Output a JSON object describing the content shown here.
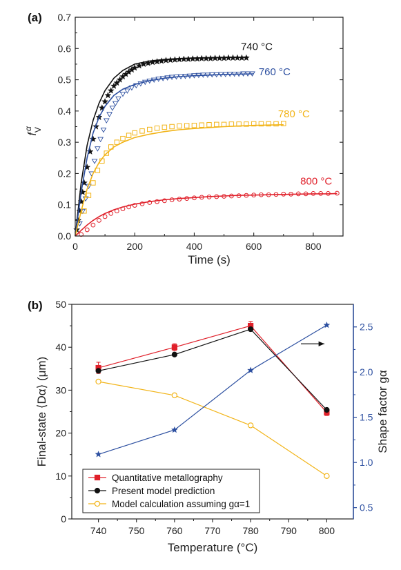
{
  "chart_data": [
    {
      "panel": "(a)",
      "type": "line",
      "xlabel": "Time (s)",
      "ylabel": "fVα",
      "xlim": [
        0,
        900
      ],
      "ylim": [
        0.0,
        0.7
      ],
      "xticks": [
        0,
        200,
        400,
        600,
        800
      ],
      "yticks": [
        0.0,
        0.1,
        0.2,
        0.3,
        0.4,
        0.5,
        0.6,
        0.7
      ],
      "xtick_labels": [
        "0",
        "200",
        "400",
        "600",
        "800"
      ],
      "ytick_labels": [
        "0.0",
        "0.1",
        "0.2",
        "0.3",
        "0.4",
        "0.5",
        "0.6",
        "0.7"
      ],
      "series": [
        {
          "name": "740 °C",
          "color": "#111111",
          "marker": "star",
          "model": {
            "x": [
              0,
              20,
              40,
              60,
              80,
              100,
              130,
              160,
              200,
              250,
              300,
              350,
              400,
              450,
              500,
              550,
              580
            ],
            "y": [
              0,
              0.17,
              0.29,
              0.37,
              0.425,
              0.465,
              0.505,
              0.53,
              0.55,
              0.56,
              0.565,
              0.568,
              0.57,
              0.571,
              0.572,
              0.572,
              0.573
            ]
          },
          "measured": {
            "x": [
              5,
              10,
              15,
              20,
              25,
              30,
              40,
              50,
              60,
              70,
              80,
              90,
              100,
              110,
              120,
              130,
              140,
              150,
              160,
              170,
              180,
              190,
              200,
              215,
              230,
              245,
              260,
              275,
              290,
              305,
              320,
              335,
              350,
              365,
              380,
              395,
              410,
              425,
              440,
              455,
              470,
              485,
              500,
              515,
              530,
              545,
              560,
              575
            ],
            "y": [
              0.02,
              0.05,
              0.08,
              0.11,
              0.14,
              0.17,
              0.22,
              0.27,
              0.31,
              0.35,
              0.38,
              0.41,
              0.43,
              0.45,
              0.465,
              0.48,
              0.49,
              0.5,
              0.51,
              0.518,
              0.525,
              0.532,
              0.538,
              0.545,
              0.55,
              0.553,
              0.556,
              0.558,
              0.56,
              0.562,
              0.563,
              0.564,
              0.565,
              0.566,
              0.566,
              0.567,
              0.567,
              0.568,
              0.568,
              0.568,
              0.569,
              0.569,
              0.569,
              0.57,
              0.57,
              0.57,
              0.57,
              0.57
            ]
          }
        },
        {
          "name": "760 °C",
          "color": "#2c4fa0",
          "marker": "triangle",
          "model": {
            "x": [
              0,
              20,
              40,
              60,
              80,
              100,
              130,
              160,
              200,
              250,
              300,
              350,
              400,
              450,
              500,
              550,
              600
            ],
            "y": [
              0,
              0.14,
              0.25,
              0.33,
              0.38,
              0.415,
              0.45,
              0.47,
              0.485,
              0.497,
              0.505,
              0.51,
              0.513,
              0.515,
              0.517,
              0.518,
              0.519
            ]
          },
          "measured": {
            "x": [
              15,
              25,
              35,
              45,
              55,
              65,
              75,
              85,
              95,
              105,
              115,
              125,
              135,
              145,
              160,
              175,
              190,
              205,
              220,
              235,
              250,
              265,
              280,
              295,
              310,
              325,
              340,
              355,
              370,
              385,
              400,
              415,
              430,
              445,
              460,
              475,
              490,
              505,
              520,
              535,
              550,
              565,
              580,
              595
            ],
            "y": [
              0.04,
              0.08,
              0.12,
              0.16,
              0.2,
              0.24,
              0.28,
              0.31,
              0.34,
              0.37,
              0.39,
              0.41,
              0.425,
              0.44,
              0.455,
              0.465,
              0.475,
              0.482,
              0.488,
              0.493,
              0.497,
              0.5,
              0.503,
              0.505,
              0.507,
              0.509,
              0.51,
              0.511,
              0.512,
              0.513,
              0.514,
              0.515,
              0.516,
              0.516,
              0.517,
              0.517,
              0.518,
              0.518,
              0.519,
              0.519,
              0.519,
              0.52,
              0.52,
              0.52
            ]
          }
        },
        {
          "name": "780 °C",
          "color": "#f2b418",
          "marker": "square",
          "model": {
            "x": [
              0,
              20,
              40,
              60,
              80,
              100,
              130,
              160,
              200,
              250,
              300,
              350,
              400,
              450,
              500,
              550,
              600,
              650,
              700
            ],
            "y": [
              0,
              0.08,
              0.15,
              0.2,
              0.235,
              0.26,
              0.285,
              0.3,
              0.315,
              0.326,
              0.334,
              0.34,
              0.344,
              0.347,
              0.35,
              0.352,
              0.354,
              0.355,
              0.356
            ]
          },
          "measured": {
            "x": [
              30,
              45,
              60,
              75,
              90,
              105,
              120,
              140,
              160,
              180,
              200,
              225,
              250,
              275,
              300,
              325,
              350,
              375,
              400,
              425,
              450,
              475,
              500,
              525,
              550,
              575,
              600,
              625,
              650,
              675,
              700
            ],
            "y": [
              0.08,
              0.13,
              0.17,
              0.21,
              0.24,
              0.265,
              0.285,
              0.3,
              0.312,
              0.322,
              0.33,
              0.336,
              0.341,
              0.345,
              0.348,
              0.35,
              0.352,
              0.353,
              0.354,
              0.355,
              0.356,
              0.357,
              0.357,
              0.358,
              0.358,
              0.358,
              0.359,
              0.359,
              0.359,
              0.359,
              0.36
            ]
          }
        },
        {
          "name": "800 °C",
          "color": "#e0202a",
          "marker": "circle",
          "model": {
            "x": [
              0,
              20,
              40,
              60,
              80,
              100,
              130,
              160,
              200,
              250,
              300,
              350,
              400,
              450,
              500,
              550,
              600,
              650,
              700,
              750,
              800,
              850,
              880
            ],
            "y": [
              0,
              0.018,
              0.035,
              0.05,
              0.062,
              0.072,
              0.084,
              0.093,
              0.102,
              0.11,
              0.116,
              0.12,
              0.123,
              0.126,
              0.128,
              0.13,
              0.131,
              0.132,
              0.133,
              0.134,
              0.135,
              0.135,
              0.136
            ]
          },
          "measured": {
            "x": [
              20,
              40,
              60,
              80,
              100,
              120,
              140,
              160,
              180,
              200,
              225,
              250,
              275,
              300,
              325,
              350,
              375,
              400,
              425,
              450,
              475,
              500,
              525,
              550,
              575,
              600,
              625,
              650,
              675,
              700,
              725,
              750,
              775,
              800,
              825,
              850,
              880
            ],
            "y": [
              0.005,
              0.02,
              0.035,
              0.05,
              0.062,
              0.072,
              0.08,
              0.087,
              0.093,
              0.098,
              0.103,
              0.107,
              0.11,
              0.113,
              0.116,
              0.118,
              0.12,
              0.122,
              0.124,
              0.125,
              0.126,
              0.127,
              0.128,
              0.129,
              0.13,
              0.131,
              0.132,
              0.132,
              0.133,
              0.134,
              0.134,
              0.135,
              0.135,
              0.136,
              0.136,
              0.136,
              0.137
            ]
          }
        }
      ],
      "annotations": [
        {
          "text": "740 °C",
          "x": 610,
          "y": 0.595,
          "color": "#111111"
        },
        {
          "text": "760 °C",
          "x": 670,
          "y": 0.515,
          "color": "#2c4fa0"
        },
        {
          "text": "780 °C",
          "x": 735,
          "y": 0.38,
          "color": "#f2b418"
        },
        {
          "text": "800 °C",
          "x": 810,
          "y": 0.165,
          "color": "#e0202a"
        }
      ]
    },
    {
      "panel": "(b)",
      "type": "line",
      "xlabel": "Temperature (°C)",
      "ylabel": "Final-state ⟨Dα⟩ (μm)",
      "y2label": "Shape factor gα",
      "xlim": [
        733,
        807
      ],
      "ylim": [
        0,
        50
      ],
      "y2lim": [
        0.375,
        2.75
      ],
      "xticks": [
        740,
        750,
        760,
        770,
        780,
        790,
        800
      ],
      "yticks": [
        0,
        10,
        20,
        30,
        40,
        50
      ],
      "y2ticks": [
        0.5,
        1.0,
        1.5,
        2.0,
        2.5
      ],
      "xtick_labels": [
        "740",
        "750",
        "760",
        "770",
        "780",
        "790",
        "800"
      ],
      "ytick_labels": [
        "0",
        "10",
        "20",
        "30",
        "40",
        "50"
      ],
      "y2tick_labels": [
        "0.5",
        "1.0",
        "1.5",
        "2.0",
        "2.5"
      ],
      "categories": [
        740,
        760,
        780,
        800
      ],
      "series": [
        {
          "name": "Quantitative metallography",
          "color": "#e0202a",
          "marker": "square",
          "axis": "left",
          "values": [
            35.2,
            40.0,
            45.0,
            24.8
          ],
          "errors": [
            1.3,
            0.8,
            1.0,
            0.7
          ]
        },
        {
          "name": "Present model prediction",
          "color": "#111111",
          "marker": "circle-filled",
          "axis": "left",
          "values": [
            34.5,
            38.3,
            44.2,
            25.4
          ]
        },
        {
          "name": "Model calculation assuming gα=1",
          "color": "#f2b418",
          "marker": "circle-open",
          "axis": "left",
          "values": [
            32.0,
            28.8,
            21.8,
            10.0
          ]
        },
        {
          "name": "Shape factor",
          "color": "#2c4fa0",
          "marker": "star",
          "axis": "right",
          "values": [
            1.09,
            1.36,
            2.02,
            2.52
          ]
        }
      ],
      "legend": {
        "placement": "bottom-left"
      },
      "arrow_direction": "right"
    }
  ]
}
